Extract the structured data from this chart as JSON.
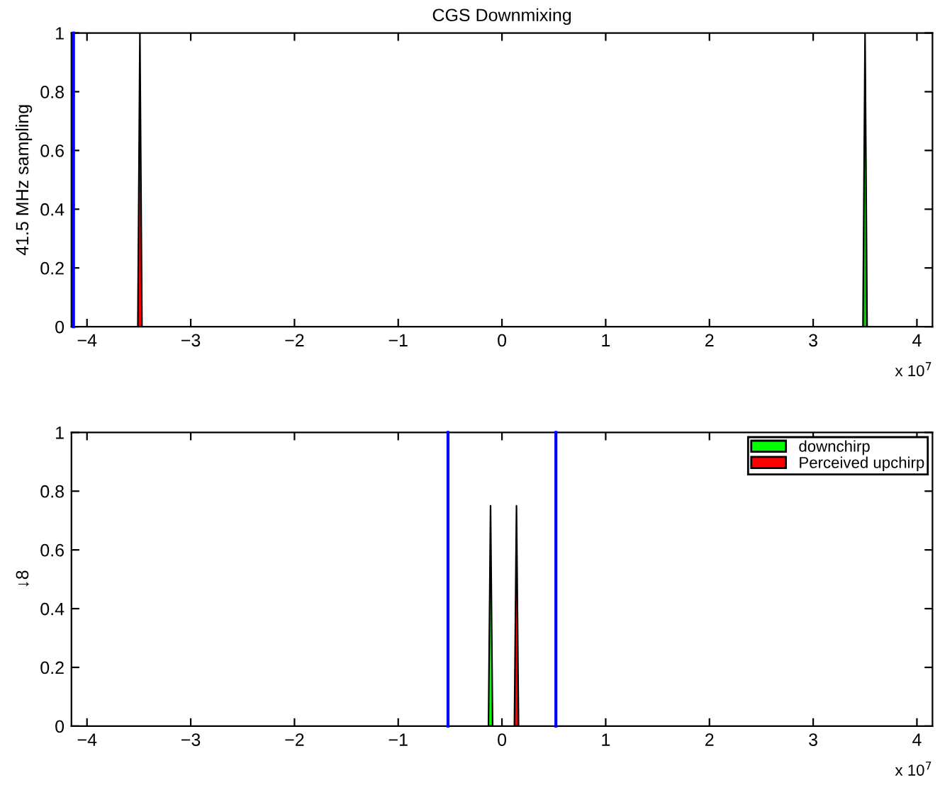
{
  "chart_data": [
    {
      "type": "area",
      "title": "CGS Downmixing",
      "ylabel": "41.5 MHz sampling",
      "series": [
        {
          "color": "#ff0000",
          "x": [
            -3.51,
            -3.49,
            -3.47
          ],
          "values": [
            0,
            1,
            0
          ]
        },
        {
          "color": "#00cc00",
          "x": [
            3.48,
            3.5,
            3.52
          ],
          "values": [
            0,
            1,
            0
          ]
        }
      ],
      "xlim": [
        -4.15,
        4.15
      ],
      "ylim": [
        0,
        1
      ],
      "xticks": [
        -4,
        -3,
        -2,
        -1,
        0,
        1,
        2,
        3,
        4
      ],
      "yticks": [
        0,
        0.2,
        0.4,
        0.6,
        0.8,
        1
      ],
      "ref_lines": [
        {
          "axis": "x",
          "value": -4.13,
          "color": "#0000ff"
        }
      ],
      "annotations": [
        "x 10$^{7}$"
      ],
      "legend": false,
      "grid": false
    },
    {
      "type": "area",
      "ylabel": "↓8",
      "series": [
        {
          "name": "downchirp",
          "color": "#00ff00",
          "x": [
            -0.13,
            -0.11,
            -0.09
          ],
          "values": [
            0,
            0.75,
            0
          ]
        },
        {
          "name": "Perceived upchirp",
          "color": "#ff0000",
          "x": [
            0.12,
            0.14,
            0.16
          ],
          "values": [
            0,
            0.75,
            0
          ]
        }
      ],
      "xlim": [
        -4.15,
        4.15
      ],
      "ylim": [
        0,
        1
      ],
      "xticks": [
        -4,
        -3,
        -2,
        -1,
        0,
        1,
        2,
        3,
        4
      ],
      "yticks": [
        0,
        0.2,
        0.4,
        0.6,
        0.8,
        1
      ],
      "ref_lines": [
        {
          "axis": "x",
          "value": -0.52,
          "color": "#0000ff"
        },
        {
          "axis": "x",
          "value": 0.52,
          "color": "#0000ff"
        }
      ],
      "annotations": [
        "x 10$^{7}$"
      ],
      "legend": "top right",
      "grid": false
    }
  ]
}
